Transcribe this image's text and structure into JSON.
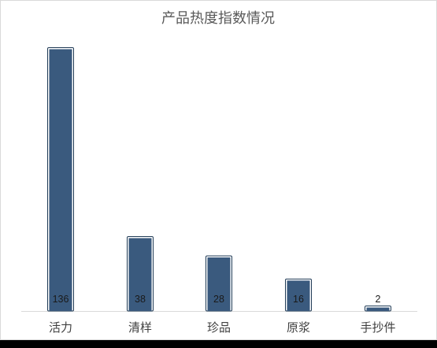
{
  "chart_data": {
    "type": "bar",
    "title": "产品热度指数情况",
    "categories": [
      "活力",
      "清样",
      "珍品",
      "原浆",
      "手抄件"
    ],
    "values": [
      136,
      38,
      28,
      16,
      2
    ],
    "xlabel": "",
    "ylabel": "",
    "ylim": [
      0,
      136
    ],
    "grid": false,
    "legend": "none",
    "bar_color": "#3a5a7e",
    "bar_outline": "#1f3a55",
    "axis_color": "#d9d9d9"
  }
}
